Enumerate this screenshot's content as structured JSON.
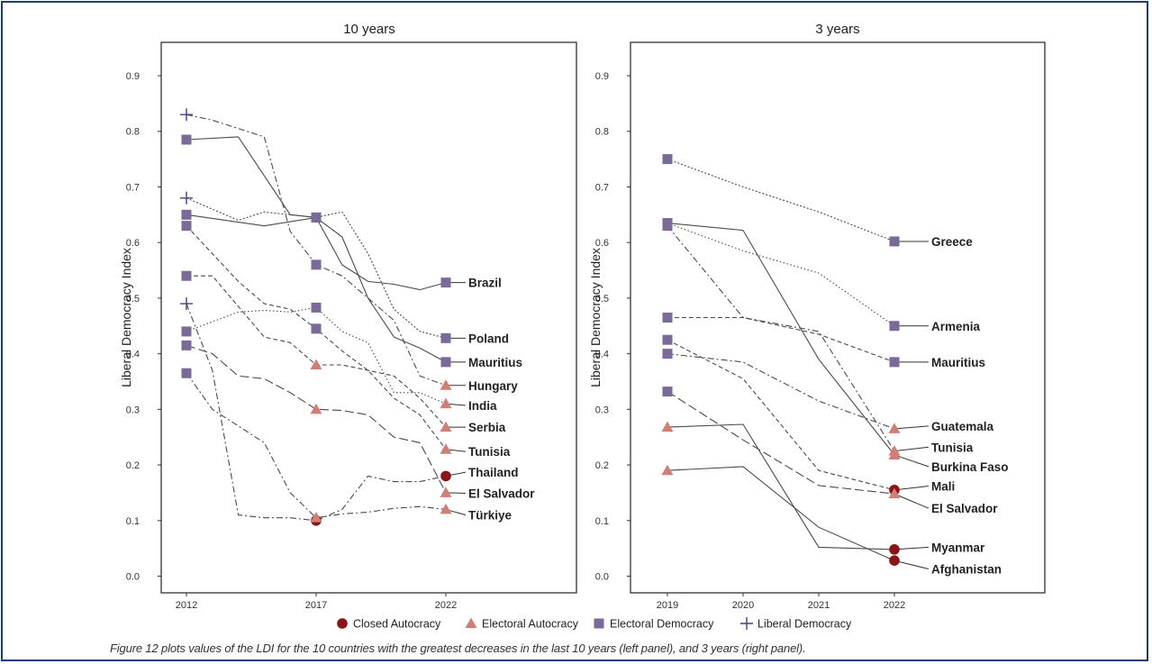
{
  "caption": "Figure 12 plots values of the LDI for the 10 countries with the greatest decreases in the last 10 years (left panel), and 3 years (right panel).",
  "legend": [
    {
      "label": "Closed Autocracy",
      "marker": "circle",
      "color": "#8b1416"
    },
    {
      "label": "Electoral Autocracy",
      "marker": "triangle",
      "color": "#d27e76"
    },
    {
      "label": "Electoral Democracy",
      "marker": "square",
      "color": "#7a6a99"
    },
    {
      "label": "Liberal Democracy",
      "marker": "cross",
      "color": "#4a3c7c"
    }
  ],
  "chart_data": [
    {
      "type": "line",
      "title": "10 years",
      "xlabel": "",
      "ylabel": "Liberal Democracy Index",
      "ylim": [
        -0.03,
        0.96
      ],
      "xlim": [
        2012,
        2022
      ],
      "yticks": [
        0.0,
        0.1,
        0.2,
        0.3,
        0.4,
        0.5,
        0.6,
        0.7,
        0.8,
        0.9
      ],
      "xticks": [
        2012,
        2017,
        2022
      ],
      "series": [
        {
          "name": "Brazil",
          "dash": "solid",
          "x": [
            2012,
            2014,
            2016,
            2017,
            2018,
            2019,
            2020,
            2021,
            2022
          ],
          "y": [
            0.785,
            0.79,
            0.65,
            0.645,
            0.56,
            0.53,
            0.525,
            0.515,
            0.528
          ],
          "markers": [
            {
              "x": 2012,
              "y": 0.785,
              "type": "square"
            },
            {
              "x": 2017,
              "y": 0.645,
              "type": "square"
            },
            {
              "x": 2022,
              "y": 0.528,
              "type": "square"
            }
          ]
        },
        {
          "name": "Poland",
          "dash": "dot",
          "x": [
            2012,
            2014,
            2015,
            2016,
            2017,
            2018,
            2019,
            2020,
            2021,
            2022
          ],
          "y": [
            0.68,
            0.64,
            0.655,
            0.65,
            0.645,
            0.655,
            0.58,
            0.48,
            0.44,
            0.428
          ],
          "markers": [
            {
              "x": 2012,
              "y": 0.68,
              "type": "cross"
            },
            {
              "x": 2017,
              "y": 0.645,
              "type": "square"
            },
            {
              "x": 2022,
              "y": 0.428,
              "type": "square"
            }
          ]
        },
        {
          "name": "Mauritius",
          "dash": "solid",
          "x": [
            2012,
            2015,
            2017,
            2018,
            2019,
            2020,
            2021,
            2022
          ],
          "y": [
            0.65,
            0.63,
            0.645,
            0.61,
            0.5,
            0.43,
            0.41,
            0.385
          ],
          "markers": [
            {
              "x": 2012,
              "y": 0.65,
              "type": "square"
            },
            {
              "x": 2017,
              "y": 0.645,
              "type": "square"
            },
            {
              "x": 2022,
              "y": 0.385,
              "type": "square"
            }
          ]
        },
        {
          "name": "Hungary",
          "dash": "dashdot",
          "x": [
            2012,
            2013,
            2015,
            2016,
            2017,
            2018,
            2019,
            2020,
            2021,
            2022
          ],
          "y": [
            0.83,
            0.82,
            0.79,
            0.62,
            0.56,
            0.54,
            0.5,
            0.46,
            0.36,
            0.343
          ],
          "markers": [
            {
              "x": 2012,
              "y": 0.83,
              "type": "cross"
            },
            {
              "x": 2017,
              "y": 0.56,
              "type": "square"
            },
            {
              "x": 2022,
              "y": 0.343,
              "type": "triangle"
            }
          ]
        },
        {
          "name": "India",
          "dash": "dotted",
          "x": [
            2012,
            2014,
            2015,
            2016,
            2017,
            2018,
            2019,
            2020,
            2021,
            2022
          ],
          "y": [
            0.44,
            0.475,
            0.478,
            0.475,
            0.483,
            0.44,
            0.42,
            0.33,
            0.33,
            0.31
          ],
          "markers": [
            {
              "x": 2012,
              "y": 0.44,
              "type": "square"
            },
            {
              "x": 2017,
              "y": 0.483,
              "type": "square"
            },
            {
              "x": 2022,
              "y": 0.31,
              "type": "triangle"
            }
          ]
        },
        {
          "name": "Serbia",
          "dash": "dashed",
          "x": [
            2012,
            2013,
            2015,
            2016,
            2017,
            2018,
            2019,
            2020,
            2021,
            2022
          ],
          "y": [
            0.54,
            0.54,
            0.43,
            0.42,
            0.38,
            0.38,
            0.37,
            0.36,
            0.32,
            0.268
          ],
          "markers": [
            {
              "x": 2012,
              "y": 0.54,
              "type": "square"
            },
            {
              "x": 2017,
              "y": 0.38,
              "type": "triangle"
            },
            {
              "x": 2022,
              "y": 0.268,
              "type": "triangle"
            }
          ]
        },
        {
          "name": "Tunisia",
          "dash": "dashed",
          "x": [
            2012,
            2014,
            2015,
            2016,
            2017,
            2018,
            2019,
            2020,
            2021,
            2022
          ],
          "y": [
            0.63,
            0.53,
            0.49,
            0.48,
            0.445,
            0.405,
            0.37,
            0.32,
            0.29,
            0.228
          ],
          "markers": [
            {
              "x": 2012,
              "y": 0.63,
              "type": "square"
            },
            {
              "x": 2017,
              "y": 0.445,
              "type": "square"
            },
            {
              "x": 2022,
              "y": 0.228,
              "type": "triangle"
            }
          ]
        },
        {
          "name": "Thailand",
          "dash": "dashdot",
          "x": [
            2012,
            2013,
            2014,
            2015,
            2016,
            2017,
            2018,
            2019,
            2020,
            2021,
            2022
          ],
          "y": [
            0.49,
            0.37,
            0.11,
            0.105,
            0.105,
            0.1,
            0.12,
            0.18,
            0.17,
            0.17,
            0.18
          ],
          "markers": [
            {
              "x": 2012,
              "y": 0.49,
              "type": "cross"
            },
            {
              "x": 2017,
              "y": 0.1,
              "type": "circle"
            },
            {
              "x": 2022,
              "y": 0.18,
              "type": "circle"
            }
          ]
        },
        {
          "name": "El Salvador",
          "dash": "longdash",
          "x": [
            2012,
            2013,
            2014,
            2015,
            2016,
            2017,
            2018,
            2019,
            2020,
            2021,
            2022
          ],
          "y": [
            0.415,
            0.4,
            0.36,
            0.355,
            0.33,
            0.3,
            0.298,
            0.29,
            0.25,
            0.24,
            0.15
          ],
          "markers": [
            {
              "x": 2012,
              "y": 0.415,
              "type": "square"
            },
            {
              "x": 2017,
              "y": 0.3,
              "type": "triangle"
            },
            {
              "x": 2022,
              "y": 0.15,
              "type": "triangle"
            }
          ]
        },
        {
          "name": "Türkiye",
          "dash": "dashdot",
          "x": [
            2012,
            2013,
            2014,
            2015,
            2016,
            2017,
            2018,
            2019,
            2020,
            2021,
            2022
          ],
          "y": [
            0.365,
            0.3,
            0.27,
            0.24,
            0.15,
            0.105,
            0.112,
            0.115,
            0.122,
            0.125,
            0.12
          ],
          "markers": [
            {
              "x": 2012,
              "y": 0.365,
              "type": "square"
            },
            {
              "x": 2017,
              "y": 0.105,
              "type": "triangle"
            },
            {
              "x": 2022,
              "y": 0.12,
              "type": "triangle"
            }
          ]
        }
      ],
      "end_labels": [
        {
          "name": "Brazil",
          "y": 0.528
        },
        {
          "name": "Poland",
          "y": 0.428
        },
        {
          "name": "Mauritius",
          "y": 0.385
        },
        {
          "name": "Hungary",
          "y": 0.343
        },
        {
          "name": "India",
          "y": 0.307
        },
        {
          "name": "Serbia",
          "y": 0.268
        },
        {
          "name": "Tunisia",
          "y": 0.224
        },
        {
          "name": "Thailand",
          "y": 0.187
        },
        {
          "name": "El Salvador",
          "y": 0.149
        },
        {
          "name": "Türkiye",
          "y": 0.11
        }
      ]
    },
    {
      "type": "line",
      "title": "3 years",
      "xlabel": "",
      "ylabel": "Liberal Democracy Index",
      "ylim": [
        -0.03,
        0.96
      ],
      "xlim": [
        2019,
        2022
      ],
      "yticks": [
        0.0,
        0.1,
        0.2,
        0.3,
        0.4,
        0.5,
        0.6,
        0.7,
        0.8,
        0.9
      ],
      "xticks": [
        2019,
        2020,
        2021,
        2022
      ],
      "series": [
        {
          "name": "Greece",
          "dash": "dot",
          "x": [
            2019,
            2020,
            2021,
            2022
          ],
          "y": [
            0.75,
            0.7,
            0.655,
            0.602
          ],
          "markers": [
            {
              "x": 2019,
              "y": 0.75,
              "type": "square"
            },
            {
              "x": 2022,
              "y": 0.602,
              "type": "square"
            }
          ]
        },
        {
          "name": "Armenia",
          "dash": "dotted",
          "x": [
            2019,
            2020,
            2021,
            2022
          ],
          "y": [
            0.635,
            0.585,
            0.545,
            0.45
          ],
          "markers": [
            {
              "x": 2019,
              "y": 0.635,
              "type": "square"
            },
            {
              "x": 2022,
              "y": 0.45,
              "type": "square"
            }
          ]
        },
        {
          "name": "Mauritius",
          "dash": "dashed",
          "x": [
            2019,
            2020,
            2021,
            2022
          ],
          "y": [
            0.465,
            0.465,
            0.435,
            0.385
          ],
          "markers": [
            {
              "x": 2019,
              "y": 0.465,
              "type": "square"
            },
            {
              "x": 2022,
              "y": 0.385,
              "type": "square"
            }
          ]
        },
        {
          "name": "Guatemala",
          "dash": "dashdot",
          "x": [
            2019,
            2020,
            2021,
            2022
          ],
          "y": [
            0.4,
            0.385,
            0.315,
            0.265
          ],
          "markers": [
            {
              "x": 2019,
              "y": 0.4,
              "type": "square"
            },
            {
              "x": 2022,
              "y": 0.265,
              "type": "triangle"
            }
          ]
        },
        {
          "name": "Tunisia",
          "dash": "dashdot",
          "x": [
            2019,
            2020,
            2021,
            2022
          ],
          "y": [
            0.63,
            0.465,
            0.44,
            0.225
          ],
          "markers": [
            {
              "x": 2019,
              "y": 0.63,
              "type": "square"
            },
            {
              "x": 2022,
              "y": 0.225,
              "type": "triangle"
            }
          ]
        },
        {
          "name": "Burkina Faso",
          "dash": "solid",
          "x": [
            2019,
            2020,
            2021,
            2022
          ],
          "y": [
            0.635,
            0.622,
            0.39,
            0.218
          ],
          "markers": [
            {
              "x": 2019,
              "y": 0.635,
              "type": "square"
            },
            {
              "x": 2022,
              "y": 0.218,
              "type": "triangle"
            }
          ]
        },
        {
          "name": "Mali",
          "dash": "dashed",
          "x": [
            2019,
            2020,
            2021,
            2022
          ],
          "y": [
            0.425,
            0.355,
            0.19,
            0.155
          ],
          "markers": [
            {
              "x": 2019,
              "y": 0.425,
              "type": "square"
            },
            {
              "x": 2022,
              "y": 0.155,
              "type": "circle"
            }
          ]
        },
        {
          "name": "El Salvador",
          "dash": "longdash",
          "x": [
            2019,
            2020,
            2021,
            2022
          ],
          "y": [
            0.332,
            0.245,
            0.163,
            0.148
          ],
          "markers": [
            {
              "x": 2019,
              "y": 0.332,
              "type": "square"
            },
            {
              "x": 2022,
              "y": 0.148,
              "type": "triangle"
            }
          ]
        },
        {
          "name": "Myanmar",
          "dash": "solid",
          "x": [
            2019,
            2020,
            2021,
            2022
          ],
          "y": [
            0.268,
            0.273,
            0.052,
            0.048
          ],
          "markers": [
            {
              "x": 2019,
              "y": 0.268,
              "type": "triangle"
            },
            {
              "x": 2022,
              "y": 0.048,
              "type": "circle"
            }
          ]
        },
        {
          "name": "Afghanistan",
          "dash": "solid",
          "x": [
            2019,
            2020,
            2021,
            2022
          ],
          "y": [
            0.19,
            0.197,
            0.088,
            0.028
          ],
          "markers": [
            {
              "x": 2019,
              "y": 0.19,
              "type": "triangle"
            },
            {
              "x": 2022,
              "y": 0.028,
              "type": "circle"
            }
          ]
        }
      ],
      "end_labels": [
        {
          "name": "Greece",
          "y": 0.602
        },
        {
          "name": "Armenia",
          "y": 0.45
        },
        {
          "name": "Mauritius",
          "y": 0.385
        },
        {
          "name": "Guatemala",
          "y": 0.27
        },
        {
          "name": "Tunisia",
          "y": 0.232
        },
        {
          "name": "Burkina Faso",
          "y": 0.197
        },
        {
          "name": "Mali",
          "y": 0.162
        },
        {
          "name": "El Salvador",
          "y": 0.122
        },
        {
          "name": "Myanmar",
          "y": 0.052
        },
        {
          "name": "Afghanistan",
          "y": 0.013
        }
      ]
    }
  ]
}
